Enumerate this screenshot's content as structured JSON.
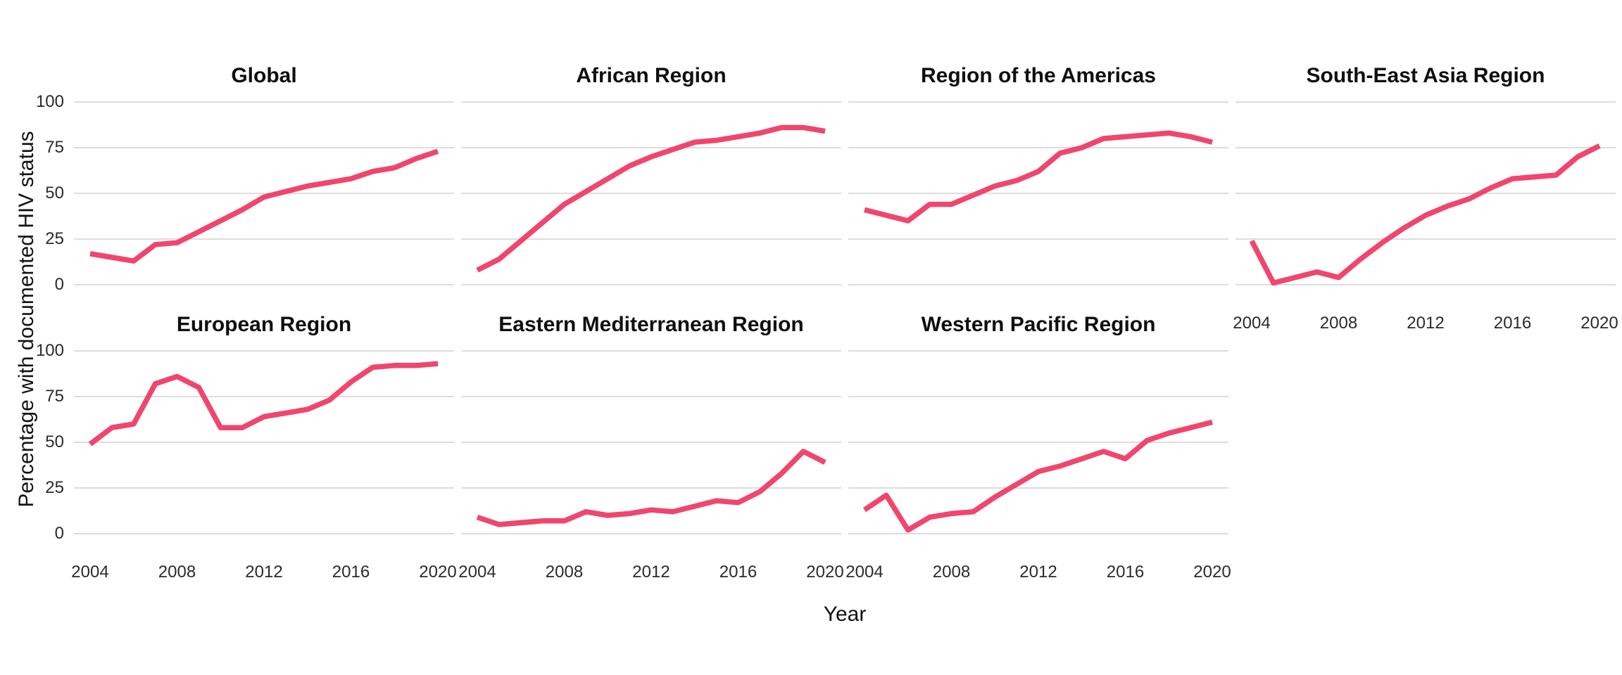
{
  "figure": {
    "y_axis_title": "Percentage with documented HIV status",
    "x_axis_title": "Year",
    "colors": {
      "line": "#F0466D",
      "gridline": "#DDDDDD",
      "background": "#FFFFFF",
      "title_text": "#0F0F0F",
      "axis_text": "#2B2B2B"
    }
  },
  "chart_data": {
    "type": "line",
    "title": "",
    "xlabel": "Year",
    "ylabel": "Percentage with documented HIV status",
    "x": [
      2004,
      2005,
      2006,
      2007,
      2008,
      2009,
      2010,
      2011,
      2012,
      2013,
      2014,
      2015,
      2016,
      2017,
      2018,
      2019,
      2020
    ],
    "x_ticks": [
      2004,
      2008,
      2012,
      2016,
      2020
    ],
    "y_ticks": [
      0,
      25,
      50,
      75,
      100
    ],
    "ylim": [
      0,
      100
    ],
    "grid": "horizontal gridlines only, light gray on white",
    "legend": "none",
    "facet_layout": {
      "columns": 4,
      "rows": 2
    },
    "facets": [
      {
        "title": "Global",
        "row": 0,
        "col": 0,
        "show_x_axis": false,
        "show_y_axis": true,
        "values": [
          17,
          15,
          13,
          22,
          23,
          29,
          35,
          41,
          48,
          51,
          54,
          56,
          58,
          62,
          64,
          69,
          73
        ]
      },
      {
        "title": "African Region",
        "row": 0,
        "col": 1,
        "show_x_axis": false,
        "show_y_axis": false,
        "values": [
          8,
          14,
          24,
          34,
          44,
          51,
          58,
          65,
          70,
          74,
          78,
          79,
          81,
          83,
          86,
          86,
          84
        ]
      },
      {
        "title": "Region of the Americas",
        "row": 0,
        "col": 2,
        "show_x_axis": false,
        "show_y_axis": false,
        "values": [
          41,
          38,
          35,
          44,
          44,
          49,
          54,
          57,
          62,
          72,
          75,
          80,
          81,
          82,
          83,
          81,
          78
        ]
      },
      {
        "title": "South-East Asia Region",
        "row": 0,
        "col": 3,
        "show_x_axis": true,
        "show_y_axis": false,
        "values": [
          24,
          1,
          4,
          7,
          4,
          14,
          23,
          31,
          38,
          43,
          47,
          53,
          58,
          59,
          60,
          70,
          76
        ]
      },
      {
        "title": "European Region",
        "row": 1,
        "col": 0,
        "show_x_axis": true,
        "show_y_axis": true,
        "values": [
          49,
          58,
          60,
          82,
          86,
          80,
          58,
          58,
          64,
          66,
          68,
          73,
          83,
          91,
          92,
          92,
          93
        ]
      },
      {
        "title": "Eastern Mediterranean Region",
        "row": 1,
        "col": 1,
        "show_x_axis": true,
        "show_y_axis": false,
        "values": [
          9,
          5,
          6,
          7,
          7,
          12,
          10,
          11,
          13,
          12,
          15,
          18,
          17,
          23,
          33,
          45,
          39
        ]
      },
      {
        "title": "Western Pacific Region",
        "row": 1,
        "col": 2,
        "show_x_axis": true,
        "show_y_axis": false,
        "values": [
          13,
          21,
          2,
          9,
          11,
          12,
          20,
          27,
          34,
          37,
          41,
          45,
          41,
          51,
          55,
          58,
          61
        ]
      }
    ]
  }
}
